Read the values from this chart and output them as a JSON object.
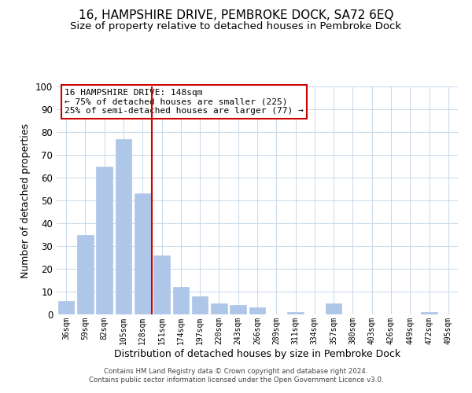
{
  "title": "16, HAMPSHIRE DRIVE, PEMBROKE DOCK, SA72 6EQ",
  "subtitle": "Size of property relative to detached houses in Pembroke Dock",
  "xlabel": "Distribution of detached houses by size in Pembroke Dock",
  "ylabel": "Number of detached properties",
  "bar_labels": [
    "36sqm",
    "59sqm",
    "82sqm",
    "105sqm",
    "128sqm",
    "151sqm",
    "174sqm",
    "197sqm",
    "220sqm",
    "243sqm",
    "266sqm",
    "289sqm",
    "311sqm",
    "334sqm",
    "357sqm",
    "380sqm",
    "403sqm",
    "426sqm",
    "449sqm",
    "472sqm",
    "495sqm"
  ],
  "bar_values": [
    6,
    35,
    65,
    77,
    53,
    26,
    12,
    8,
    5,
    4,
    3,
    0,
    1,
    0,
    5,
    0,
    0,
    0,
    0,
    1,
    0
  ],
  "bar_color": "#aec6e8",
  "bar_edge_color": "#aec6e8",
  "vline_color": "#cc0000",
  "annotation_title": "16 HAMPSHIRE DRIVE: 148sqm",
  "annotation_line1": "← 75% of detached houses are smaller (225)",
  "annotation_line2": "25% of semi-detached houses are larger (77) →",
  "annotation_box_color": "#ffffff",
  "annotation_box_edge": "#cc0000",
  "ylim": [
    0,
    100
  ],
  "footer1": "Contains HM Land Registry data © Crown copyright and database right 2024.",
  "footer2": "Contains public sector information licensed under the Open Government Licence v3.0.",
  "bg_color": "#ffffff",
  "grid_color": "#c8d8e8",
  "title_fontsize": 11,
  "subtitle_fontsize": 9.5
}
